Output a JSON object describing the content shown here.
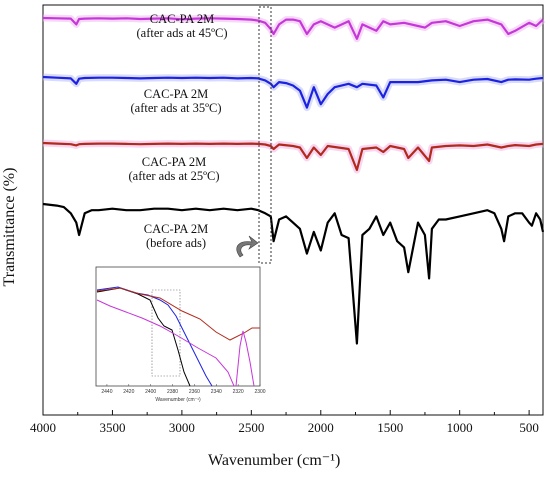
{
  "chart_data": {
    "type": "line",
    "xlabel": "Wavenumber (cm⁻¹)",
    "ylabel": "Transmittance (%)",
    "xlim": [
      4000,
      400
    ],
    "x_reversed": true,
    "xticks": [
      "4000",
      "3500",
      "3000",
      "2500",
      "2000",
      "1500",
      "1000",
      "500"
    ],
    "grid": false,
    "series": [
      {
        "name": "CAC-PA 2M (after ads at 45ºC)",
        "color": "#c637d9",
        "x": [
          4000,
          3900,
          3800,
          3760,
          3740,
          3700,
          3600,
          3500,
          3400,
          3300,
          3200,
          3100,
          3000,
          2900,
          2800,
          2700,
          2600,
          2500,
          2450,
          2400,
          2360,
          2340,
          2300,
          2250,
          2200,
          2150,
          2100,
          2050,
          2000,
          1900,
          1800,
          1740,
          1700,
          1600,
          1550,
          1500,
          1400,
          1300,
          1250,
          1200,
          1100,
          1000,
          900,
          800,
          700,
          650,
          600,
          500,
          450,
          400
        ],
        "y": [
          0,
          0.1,
          0.2,
          2,
          0.3,
          0.2,
          0.1,
          0.2,
          0.1,
          0.3,
          0.2,
          0.1,
          0.4,
          0.2,
          0.1,
          0.2,
          0.3,
          0.5,
          0.8,
          1.5,
          3.5,
          5,
          2,
          0.5,
          0.5,
          1,
          5,
          2,
          1,
          3,
          1,
          6.5,
          2,
          4,
          1,
          2,
          1.5,
          2.5,
          3,
          1.5,
          1,
          2.5,
          1,
          0.5,
          2,
          5,
          4,
          1.5,
          2.5,
          0.5
        ]
      },
      {
        "name": "CAC-PA 2M (after ads at 35ºC)",
        "color": "#1c22e0",
        "x": [
          4000,
          3900,
          3800,
          3760,
          3740,
          3700,
          3600,
          3500,
          3400,
          3300,
          3200,
          3100,
          3000,
          2900,
          2800,
          2700,
          2600,
          2500,
          2450,
          2400,
          2360,
          2340,
          2300,
          2250,
          2200,
          2150,
          2100,
          2050,
          2000,
          1950,
          1900,
          1800,
          1740,
          1700,
          1600,
          1550,
          1500,
          1400,
          1300,
          1200,
          1100,
          1000,
          900,
          800,
          700,
          650,
          600,
          500,
          450,
          400
        ],
        "y": [
          0,
          0.2,
          0.4,
          2,
          0.5,
          0.3,
          0.2,
          0.2,
          0.3,
          0.4,
          0.3,
          0.2,
          0.3,
          0.2,
          0.3,
          0.2,
          0.4,
          0.3,
          0.4,
          1,
          2,
          3,
          1.5,
          1.8,
          2.5,
          4,
          9,
          3,
          8,
          5,
          3,
          2,
          3,
          2,
          2.5,
          6,
          1.5,
          1.5,
          1.5,
          1,
          0.8,
          1.5,
          0.8,
          0.6,
          1.5,
          0.8,
          0.7,
          0.8,
          0.5,
          0.3
        ]
      },
      {
        "name": "CAC-PA 2M (after ads at 25ºC)",
        "color": "#b22a1c",
        "x": [
          4000,
          3900,
          3800,
          3760,
          3740,
          3700,
          3600,
          3500,
          3400,
          3300,
          3200,
          3100,
          3000,
          2900,
          2800,
          2700,
          2600,
          2500,
          2450,
          2400,
          2360,
          2340,
          2300,
          2200,
          2150,
          2100,
          2050,
          2000,
          1950,
          1800,
          1740,
          1700,
          1600,
          1550,
          1500,
          1400,
          1370,
          1300,
          1220,
          1200,
          1100,
          1000,
          900,
          800,
          700,
          650,
          600,
          500,
          450,
          400
        ],
        "y": [
          0,
          0.2,
          0.4,
          0.8,
          0.4,
          0.3,
          0.2,
          0.2,
          0.3,
          0.4,
          0.3,
          0.2,
          0.3,
          0.2,
          0.3,
          0.2,
          0.3,
          0.2,
          0.3,
          0.5,
          1,
          2,
          0.5,
          1,
          1.5,
          5,
          1.5,
          4,
          1,
          2,
          9,
          2,
          1.5,
          3,
          1,
          2,
          5,
          1.5,
          6,
          1.5,
          1,
          0.8,
          1,
          0.5,
          1.5,
          1,
          0.7,
          1,
          0.5,
          0.3
        ]
      },
      {
        "name": "CAC-PA 2M (before ads)",
        "color": "#000000",
        "x": [
          4000,
          3900,
          3850,
          3800,
          3760,
          3740,
          3700,
          3650,
          3600,
          3500,
          3400,
          3300,
          3200,
          3100,
          3000,
          2900,
          2800,
          2700,
          2600,
          2500,
          2450,
          2400,
          2360,
          2340,
          2300,
          2250,
          2200,
          2150,
          2100,
          2050,
          2000,
          1950,
          1900,
          1850,
          1800,
          1740,
          1700,
          1650,
          1600,
          1550,
          1500,
          1450,
          1400,
          1370,
          1300,
          1250,
          1220,
          1200,
          1150,
          1100,
          1000,
          900,
          800,
          750,
          700,
          680,
          650,
          600,
          550,
          500,
          480,
          450,
          420,
          400
        ],
        "y": [
          0,
          0.5,
          1,
          3,
          6,
          10,
          3,
          2,
          2,
          1.5,
          2,
          2,
          1.5,
          1.5,
          2,
          1.5,
          2,
          1.5,
          2,
          1.5,
          2,
          3,
          4,
          12,
          5,
          4,
          6,
          8,
          16,
          9,
          15,
          6,
          3,
          10,
          11,
          45,
          10,
          8,
          4,
          10,
          6,
          12,
          14,
          22,
          6,
          10,
          24,
          8,
          5,
          5,
          4,
          3,
          2,
          3,
          8,
          12,
          4,
          3,
          3,
          6,
          7,
          3,
          5,
          9
        ]
      }
    ],
    "inset": {
      "xlabel": "Wavenumber (cm⁻¹)",
      "xlim": [
        2450,
        2300
      ],
      "xticks": [
        "2440",
        "2420",
        "2400",
        "2380",
        "2360",
        "2340",
        "2320",
        "2300"
      ]
    }
  },
  "labels": {
    "l45a": "CAC-PA 2M",
    "l45b": "(after ads at 45ºC)",
    "l35a": "CAC-PA 2M",
    "l35b": "(after ads at 35ºC)",
    "l25a": "CAC-PA 2M",
    "l25b": "(after ads at 25ºC)",
    "lba": "CAC-PA 2M",
    "lbb": "(before ads)"
  },
  "colors": {
    "glow_45": "#f0b8f4",
    "glow_35": "#b9bdf5",
    "glow_25": "#f2b5e8",
    "axis": "#111111"
  }
}
